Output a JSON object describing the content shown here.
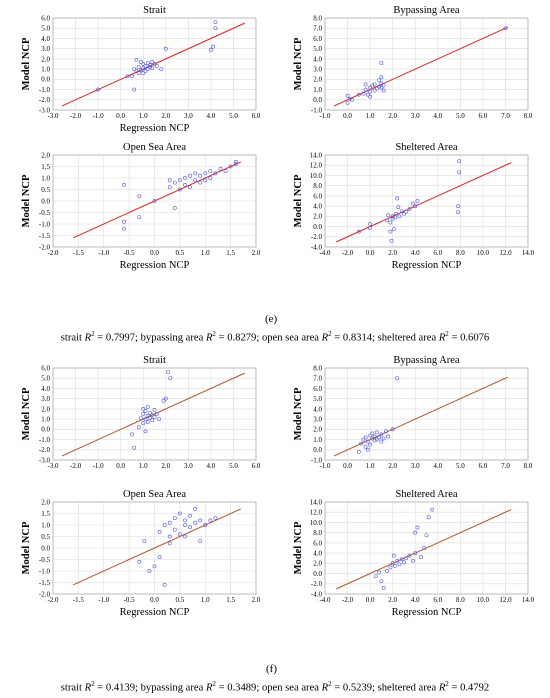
{
  "sections": [
    {
      "label": "(e)",
      "caption": [
        {
          "prefix": "strait ",
          "value": "0.7997",
          "sep": "; "
        },
        {
          "prefix": "bypassing area ",
          "value": "0.8279",
          "sep": "; "
        },
        {
          "prefix": "open sea area ",
          "value": "0.8314",
          "sep": "; "
        },
        {
          "prefix": "sheltered area ",
          "value": "0.6076",
          "sep": ""
        }
      ]
    },
    {
      "label": "(f)",
      "caption": [
        {
          "prefix": "strait ",
          "value": "0.4139",
          "sep": "; "
        },
        {
          "prefix": "bypassing area ",
          "value": "0.3489",
          "sep": "; "
        },
        {
          "prefix": "open sea area ",
          "value": "0.5239",
          "sep": "; "
        },
        {
          "prefix": "sheltered area ",
          "value": "0.4792",
          "sep": ""
        }
      ]
    }
  ],
  "r2_symbol": "R",
  "r2_sup": "2",
  "eq": " = ",
  "colors": {
    "points": "#4a55e0",
    "line_e": "#e02020",
    "line_f": "#b0522a",
    "grid": "#dcdcdc"
  },
  "chart_data": [
    {
      "type": "scatter",
      "section": "(e)",
      "title": "Strait",
      "xlabel": "Regression NCP",
      "ylabel": "Model NCP",
      "xlim": [
        -3.0,
        6.0
      ],
      "ylim": [
        -3.0,
        6.0
      ],
      "xticks": [
        "-3.0",
        "-2.0",
        "-1.0",
        "0.0",
        "1.0",
        "2.0",
        "3.0",
        "4.0",
        "5.0",
        "6.0"
      ],
      "yticks": [
        "-3.0",
        "-2.0",
        "-1.0",
        "0.0",
        "1.0",
        "2.0",
        "3.0",
        "4.0",
        "5.0",
        "6.0"
      ],
      "fit_line": [
        [
          -2.6,
          -2.6
        ],
        [
          5.5,
          5.5
        ]
      ],
      "points": [
        [
          0.5,
          0.3
        ],
        [
          0.6,
          1.0
        ],
        [
          0.7,
          1.9
        ],
        [
          0.8,
          0.6
        ],
        [
          0.8,
          1.2
        ],
        [
          0.9,
          0.9
        ],
        [
          1.0,
          1.5
        ],
        [
          1.0,
          1.1
        ],
        [
          1.1,
          1.3
        ],
        [
          1.1,
          0.8
        ],
        [
          1.2,
          1.6
        ],
        [
          1.2,
          1.0
        ],
        [
          1.3,
          1.4
        ],
        [
          1.3,
          1.2
        ],
        [
          1.4,
          1.7
        ],
        [
          1.4,
          1.1
        ],
        [
          1.5,
          1.5
        ],
        [
          0.9,
          1.7
        ],
        [
          0.6,
          -1.0
        ],
        [
          0.7,
          0.8
        ],
        [
          1.0,
          0.6
        ],
        [
          1.6,
          1.3
        ],
        [
          2.0,
          3.0
        ],
        [
          1.8,
          1.0
        ],
        [
          4.1,
          3.2
        ],
        [
          4.0,
          2.9
        ],
        [
          4.2,
          5.6
        ],
        [
          4.2,
          5.0
        ],
        [
          -1.0,
          -1.0
        ],
        [
          0.3,
          0.3
        ]
      ]
    },
    {
      "type": "scatter",
      "section": "(e)",
      "title": "Bypassing Area",
      "xlabel": "",
      "ylabel": "Model NCP",
      "xlim": [
        -1.0,
        8.0
      ],
      "ylim": [
        -1.0,
        8.0
      ],
      "xticks": [
        "-1.0",
        "0.0",
        "1.0",
        "2.0",
        "3.0",
        "4.0",
        "5.0",
        "6.0",
        "7.0",
        "8.0"
      ],
      "yticks": [
        "-1.0",
        "0.0",
        "1.0",
        "2.0",
        "3.0",
        "4.0",
        "5.0",
        "6.0",
        "7.0",
        "8.0"
      ],
      "fit_line": [
        [
          -0.6,
          -0.6
        ],
        [
          7.1,
          7.1
        ]
      ],
      "points": [
        [
          0.0,
          0.4
        ],
        [
          0.0,
          -0.3
        ],
        [
          0.1,
          0.1
        ],
        [
          0.2,
          0.0
        ],
        [
          0.5,
          0.5
        ],
        [
          0.7,
          0.6
        ],
        [
          0.8,
          1.0
        ],
        [
          0.9,
          0.5
        ],
        [
          1.0,
          1.2
        ],
        [
          1.0,
          0.8
        ],
        [
          1.1,
          1.4
        ],
        [
          1.2,
          0.9
        ],
        [
          1.2,
          1.5
        ],
        [
          1.3,
          1.1
        ],
        [
          1.4,
          1.9
        ],
        [
          1.4,
          1.3
        ],
        [
          1.5,
          1.6
        ],
        [
          1.5,
          1.2
        ],
        [
          1.5,
          2.2
        ],
        [
          1.5,
          3.6
        ],
        [
          1.6,
          0.9
        ],
        [
          1.6,
          1.4
        ],
        [
          1.0,
          0.3
        ],
        [
          0.8,
          1.5
        ],
        [
          7.0,
          7.0
        ]
      ]
    },
    {
      "type": "scatter",
      "section": "(e)",
      "title": "Open Sea Area",
      "xlabel": "Regression NCP",
      "ylabel": "Model NCP",
      "xlim": [
        -2.0,
        2.0
      ],
      "ylim": [
        -2.0,
        2.0
      ],
      "xticks": [
        "-2.0",
        "-1.5",
        "-1.0",
        "-0.5",
        "0.0",
        "0.5",
        "1.0",
        "1.5",
        "2.0"
      ],
      "yticks": [
        "-2.0",
        "-1.5",
        "-1.0",
        "-0.5",
        "0.0",
        "0.5",
        "1.0",
        "1.5",
        "2.0"
      ],
      "fit_line": [
        [
          -1.6,
          -1.6
        ],
        [
          1.7,
          1.7
        ]
      ],
      "points": [
        [
          -0.6,
          0.7
        ],
        [
          -0.6,
          -1.2
        ],
        [
          -0.6,
          -0.9
        ],
        [
          -0.3,
          0.2
        ],
        [
          -0.3,
          -0.7
        ],
        [
          0.0,
          0.0
        ],
        [
          0.3,
          0.6
        ],
        [
          0.3,
          0.9
        ],
        [
          0.4,
          -0.3
        ],
        [
          0.4,
          0.8
        ],
        [
          0.5,
          0.5
        ],
        [
          0.5,
          0.9
        ],
        [
          0.6,
          0.7
        ],
        [
          0.6,
          1.0
        ],
        [
          0.7,
          0.6
        ],
        [
          0.7,
          1.1
        ],
        [
          0.8,
          0.9
        ],
        [
          0.8,
          1.2
        ],
        [
          0.9,
          0.8
        ],
        [
          0.9,
          1.1
        ],
        [
          1.0,
          1.2
        ],
        [
          1.0,
          0.9
        ],
        [
          1.1,
          1.3
        ],
        [
          1.1,
          1.0
        ],
        [
          1.2,
          1.2
        ],
        [
          1.3,
          1.4
        ],
        [
          1.4,
          1.3
        ],
        [
          1.5,
          1.5
        ],
        [
          1.6,
          1.6
        ],
        [
          1.6,
          1.7
        ]
      ]
    },
    {
      "type": "scatter",
      "section": "(e)",
      "title": "Sheltered Area",
      "xlabel": "Regression NCP",
      "ylabel": "Model NCP",
      "xlim": [
        -4.0,
        14.0
      ],
      "ylim": [
        -4.0,
        14.0
      ],
      "xticks": [
        "-4.0",
        "-2.0",
        "0.0",
        "2.0",
        "4.0",
        "6.0",
        "8.0",
        "10.0",
        "12.0",
        "14.0"
      ],
      "yticks": [
        "-4.0",
        "-2.0",
        "0.0",
        "2.0",
        "4.0",
        "6.0",
        "8.0",
        "10.0",
        "12.0",
        "14.0"
      ],
      "fit_line": [
        [
          -3.0,
          -3.0
        ],
        [
          12.5,
          12.5
        ]
      ],
      "points": [
        [
          -1.0,
          -1.0
        ],
        [
          0.0,
          -0.3
        ],
        [
          0.0,
          0.5
        ],
        [
          1.5,
          1.2
        ],
        [
          1.8,
          0.8
        ],
        [
          1.8,
          -1.0
        ],
        [
          1.9,
          -2.8
        ],
        [
          2.0,
          1.5
        ],
        [
          2.0,
          2.0
        ],
        [
          2.2,
          1.8
        ],
        [
          2.3,
          2.5
        ],
        [
          2.4,
          5.5
        ],
        [
          2.5,
          3.8
        ],
        [
          2.6,
          2.0
        ],
        [
          2.8,
          3.0
        ],
        [
          3.0,
          2.5
        ],
        [
          3.2,
          2.9
        ],
        [
          3.5,
          3.4
        ],
        [
          3.8,
          4.5
        ],
        [
          4.0,
          4.0
        ],
        [
          4.2,
          5.0
        ],
        [
          7.8,
          2.8
        ],
        [
          7.8,
          4.0
        ],
        [
          7.9,
          10.6
        ],
        [
          7.9,
          12.8
        ],
        [
          1.6,
          2.2
        ],
        [
          2.1,
          -0.5
        ]
      ]
    },
    {
      "type": "scatter",
      "section": "(f)",
      "title": "Strait",
      "xlabel": "",
      "ylabel": "Model NCP",
      "xlim": [
        -3.0,
        6.0
      ],
      "ylim": [
        -3.0,
        6.0
      ],
      "xticks": [
        "-3.0",
        "-2.0",
        "-1.0",
        "0.0",
        "1.0",
        "2.0",
        "3.0",
        "4.0",
        "5.0",
        "6.0"
      ],
      "yticks": [
        "-3.0",
        "-2.0",
        "-1.0",
        "0.0",
        "1.0",
        "2.0",
        "3.0",
        "4.0",
        "5.0",
        "6.0"
      ],
      "fit_line": [
        [
          -2.6,
          -2.6
        ],
        [
          5.5,
          5.5
        ]
      ],
      "points": [
        [
          0.5,
          -0.5
        ],
        [
          0.6,
          -1.8
        ],
        [
          0.8,
          0.2
        ],
        [
          0.9,
          1.1
        ],
        [
          1.0,
          0.6
        ],
        [
          1.0,
          1.5
        ],
        [
          1.1,
          1.0
        ],
        [
          1.1,
          1.8
        ],
        [
          1.2,
          1.3
        ],
        [
          1.2,
          0.7
        ],
        [
          1.3,
          1.6
        ],
        [
          1.3,
          1.1
        ],
        [
          1.4,
          1.4
        ],
        [
          1.4,
          0.9
        ],
        [
          1.5,
          1.2
        ],
        [
          1.6,
          1.5
        ],
        [
          1.7,
          1.0
        ],
        [
          1.0,
          2.0
        ],
        [
          1.2,
          2.2
        ],
        [
          1.5,
          1.9
        ],
        [
          1.9,
          2.8
        ],
        [
          2.0,
          3.0
        ],
        [
          2.1,
          5.6
        ],
        [
          2.2,
          5.0
        ],
        [
          1.1,
          -0.2
        ]
      ]
    },
    {
      "type": "scatter",
      "section": "(f)",
      "title": "Bypassing Area",
      "xlabel": "",
      "ylabel": "Model NCP",
      "xlim": [
        -1.0,
        8.0
      ],
      "ylim": [
        -1.0,
        8.0
      ],
      "xticks": [
        "-1.0",
        "0.0",
        "1.0",
        "2.0",
        "3.0",
        "4.0",
        "5.0",
        "6.0",
        "7.0",
        "8.0"
      ],
      "yticks": [
        "-1.0",
        "0.0",
        "1.0",
        "2.0",
        "3.0",
        "4.0",
        "5.0",
        "6.0",
        "7.0",
        "8.0"
      ],
      "fit_line": [
        [
          -0.6,
          -0.6
        ],
        [
          7.1,
          7.1
        ]
      ],
      "points": [
        [
          0.5,
          -0.2
        ],
        [
          0.6,
          0.6
        ],
        [
          0.7,
          1.0
        ],
        [
          0.8,
          0.3
        ],
        [
          0.8,
          1.2
        ],
        [
          0.9,
          0.8
        ],
        [
          1.0,
          1.4
        ],
        [
          1.0,
          0.5
        ],
        [
          1.1,
          1.1
        ],
        [
          1.1,
          1.6
        ],
        [
          1.2,
          0.9
        ],
        [
          1.2,
          1.3
        ],
        [
          1.3,
          1.7
        ],
        [
          1.3,
          1.0
        ],
        [
          1.4,
          1.2
        ],
        [
          1.5,
          1.5
        ],
        [
          1.6,
          1.1
        ],
        [
          1.7,
          1.8
        ],
        [
          1.8,
          1.3
        ],
        [
          2.0,
          2.0
        ],
        [
          0.9,
          0.0
        ],
        [
          1.5,
          0.8
        ],
        [
          2.2,
          7.0
        ]
      ]
    },
    {
      "type": "scatter",
      "section": "(f)",
      "title": "Open Sea Area",
      "xlabel": "Regression NCP",
      "ylabel": "Model NCP",
      "xlim": [
        -2.0,
        2.0
      ],
      "ylim": [
        -2.0,
        2.0
      ],
      "xticks": [
        "-2.0",
        "-1.5",
        "-1.0",
        "-0.5",
        "0.0",
        "0.5",
        "1.0",
        "1.5",
        "2.0"
      ],
      "yticks": [
        "-2.0",
        "-1.5",
        "-1.0",
        "-0.5",
        "0.0",
        "0.5",
        "1.0",
        "1.5",
        "2.0"
      ],
      "fit_line": [
        [
          -1.6,
          -1.6
        ],
        [
          1.7,
          1.7
        ]
      ],
      "points": [
        [
          -0.3,
          -0.6
        ],
        [
          -0.2,
          0.3
        ],
        [
          -0.1,
          -1.0
        ],
        [
          0.0,
          -0.8
        ],
        [
          0.1,
          -0.4
        ],
        [
          0.1,
          0.7
        ],
        [
          0.2,
          1.0
        ],
        [
          0.2,
          -1.6
        ],
        [
          0.3,
          0.5
        ],
        [
          0.3,
          1.1
        ],
        [
          0.4,
          0.8
        ],
        [
          0.4,
          1.3
        ],
        [
          0.5,
          0.6
        ],
        [
          0.5,
          1.5
        ],
        [
          0.6,
          1.0
        ],
        [
          0.6,
          1.2
        ],
        [
          0.7,
          0.9
        ],
        [
          0.7,
          1.4
        ],
        [
          0.8,
          1.1
        ],
        [
          0.8,
          1.7
        ],
        [
          0.9,
          1.2
        ],
        [
          1.0,
          1.0
        ],
        [
          1.1,
          1.2
        ],
        [
          1.2,
          1.3
        ],
        [
          0.6,
          0.5
        ],
        [
          0.9,
          0.3
        ],
        [
          0.3,
          0.2
        ]
      ]
    },
    {
      "type": "scatter",
      "section": "(f)",
      "title": "Sheltered Area",
      "xlabel": "Regression NCP",
      "ylabel": "Model NCP",
      "xlim": [
        -4.0,
        14.0
      ],
      "ylim": [
        -4.0,
        14.0
      ],
      "xticks": [
        "-4.0",
        "-2.0",
        "0.0",
        "2.0",
        "4.0",
        "6.0",
        "8.0",
        "10.0",
        "12.0",
        "14.0"
      ],
      "yticks": [
        "-4.0",
        "-2.0",
        "0.0",
        "2.0",
        "4.0",
        "6.0",
        "8.0",
        "10.0",
        "12.0",
        "14.0"
      ],
      "fit_line": [
        [
          -3.0,
          -3.0
        ],
        [
          12.5,
          12.5
        ]
      ],
      "points": [
        [
          0.5,
          -0.5
        ],
        [
          1.0,
          -1.5
        ],
        [
          1.2,
          -2.8
        ],
        [
          1.5,
          0.5
        ],
        [
          1.8,
          1.2
        ],
        [
          2.0,
          2.0
        ],
        [
          2.2,
          1.5
        ],
        [
          2.4,
          2.5
        ],
        [
          2.6,
          1.8
        ],
        [
          2.8,
          2.8
        ],
        [
          3.0,
          2.2
        ],
        [
          3.2,
          3.0
        ],
        [
          3.5,
          3.5
        ],
        [
          3.8,
          2.5
        ],
        [
          4.0,
          4.0
        ],
        [
          4.5,
          3.2
        ],
        [
          4.8,
          5.0
        ],
        [
          5.0,
          7.5
        ],
        [
          5.2,
          11.0
        ],
        [
          5.5,
          12.5
        ],
        [
          4.0,
          8.0
        ],
        [
          4.2,
          9.0
        ],
        [
          0.8,
          0.2
        ],
        [
          2.1,
          3.5
        ]
      ]
    }
  ]
}
